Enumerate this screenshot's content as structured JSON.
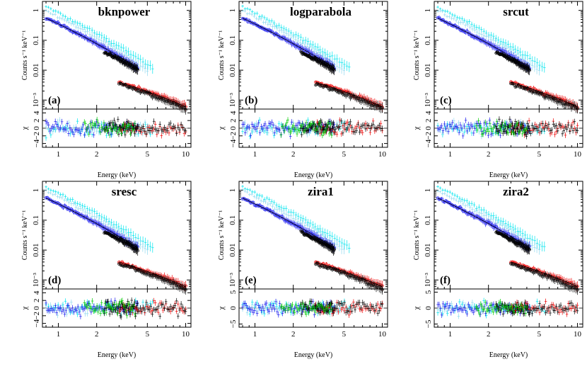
{
  "figure": {
    "xlabel": "Energy (keV)",
    "ylabel_top": "Counts s⁻¹ keV⁻¹",
    "ylabel_bottom": "χ"
  },
  "chart_data": [
    {
      "type": "scatter",
      "model": "bknpower",
      "tag": "(a)",
      "xscale": "log",
      "yscale": "log",
      "xlim": [
        0.75,
        11
      ],
      "ylim": [
        0.0005,
        2
      ],
      "resid_ylim": [
        -5,
        5
      ],
      "resid_ticks": [
        "4",
        "2",
        "0",
        "−2",
        "−4"
      ],
      "resid_tick_values": [
        4,
        2,
        0,
        -2,
        -4
      ]
    },
    {
      "type": "scatter",
      "model": "logparabola",
      "tag": "(b)",
      "xscale": "log",
      "yscale": "log",
      "xlim": [
        0.75,
        11
      ],
      "ylim": [
        0.0005,
        2
      ],
      "resid_ylim": [
        -5,
        5
      ],
      "resid_ticks": [
        "4",
        "2",
        "0",
        "−2",
        "−4"
      ],
      "resid_tick_values": [
        4,
        2,
        0,
        -2,
        -4
      ]
    },
    {
      "type": "scatter",
      "model": "srcut",
      "tag": "(c)",
      "xscale": "log",
      "yscale": "log",
      "xlim": [
        0.75,
        11
      ],
      "ylim": [
        0.0005,
        2
      ],
      "resid_ylim": [
        -5,
        5
      ],
      "resid_ticks": [
        "4",
        "2",
        "0",
        "−2",
        "−4"
      ],
      "resid_tick_values": [
        4,
        2,
        0,
        -2,
        -4
      ]
    },
    {
      "type": "scatter",
      "model": "sresc",
      "tag": "(d)",
      "xscale": "log",
      "yscale": "log",
      "xlim": [
        0.75,
        11
      ],
      "ylim": [
        0.0005,
        2
      ],
      "resid_ylim": [
        -5,
        5
      ],
      "resid_ticks": [
        "4",
        "2",
        "0",
        "−2",
        "−4"
      ],
      "resid_tick_values": [
        4,
        2,
        0,
        -2,
        -4
      ]
    },
    {
      "type": "scatter",
      "model": "zira1",
      "tag": "(e)",
      "xscale": "log",
      "yscale": "log",
      "xlim": [
        0.75,
        11
      ],
      "ylim": [
        0.0005,
        2
      ],
      "resid_ylim": [
        -6,
        6
      ],
      "resid_ticks": [
        "5",
        "0",
        "−5"
      ],
      "resid_tick_values": [
        5,
        0,
        -5
      ]
    },
    {
      "type": "scatter",
      "model": "zira2",
      "tag": "(f)",
      "xscale": "log",
      "yscale": "log",
      "xlim": [
        0.75,
        11
      ],
      "ylim": [
        0.0005,
        2
      ],
      "resid_ylim": [
        -6,
        6
      ],
      "resid_ticks": [
        "5",
        "0",
        "−5"
      ],
      "resid_tick_values": [
        5,
        0,
        -5
      ]
    }
  ],
  "axes": {
    "x_ticks": [
      "1",
      "2",
      "5",
      "10"
    ],
    "x_tick_values": [
      1,
      2,
      5,
      10
    ],
    "y_ticks": [
      "1",
      "0.1",
      "0.01",
      "10⁻³"
    ],
    "y_tick_values": [
      1,
      0.1,
      0.01,
      0.001
    ]
  },
  "series": [
    {
      "name": "",
      "color": "#00e5ee",
      "x_range": [
        0.8,
        5.5
      ],
      "y_start": 1.3,
      "y_end": 0.012,
      "marker": "cross"
    },
    {
      "name": "",
      "color": "#8fd8ef",
      "x_range": [
        0.8,
        5.0
      ],
      "y_start": 1.0,
      "y_end": 0.01,
      "marker": "cross"
    },
    {
      "name": "",
      "color": "#1a1aee",
      "x_range": [
        0.8,
        4.2
      ],
      "y_start": 0.55,
      "y_end": 0.012,
      "marker": "circle"
    },
    {
      "name": "",
      "color": "#000000",
      "x_range": [
        2.3,
        4.2
      ],
      "y_start": 0.04,
      "y_end": 0.01,
      "marker": "circle"
    },
    {
      "name": "",
      "color": "#ee0000",
      "x_range": [
        3.0,
        10.0
      ],
      "y_start": 0.004,
      "y_end": 0.0006,
      "marker": "diamond"
    },
    {
      "name": "",
      "color": "#000000",
      "x_range": [
        3.0,
        10.0
      ],
      "y_start": 0.0035,
      "y_end": 0.0005,
      "marker": "circle"
    },
    {
      "name": "",
      "color": "#00cc00",
      "x_range": [
        1.6,
        4.0
      ],
      "y_start": 0.0,
      "y_end": 0.0,
      "marker": "cross"
    }
  ]
}
